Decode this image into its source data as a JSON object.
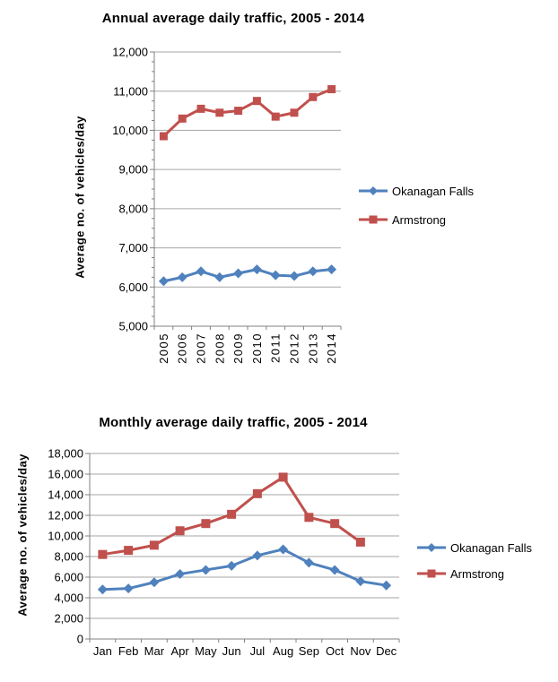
{
  "colors": {
    "okanagan_blue": "#4F81BD",
    "armstrong_red": "#C0504D",
    "gridline": "#A6A6A6",
    "axis_line": "#808080",
    "text": "#000000",
    "background": "#FFFFFF"
  },
  "chart_data": [
    {
      "type": "line",
      "title": "Annual average daily traffic, 2005 - 2014",
      "xlabel": "",
      "ylabel": "Average no. of vehicles/day",
      "categories": [
        "2005",
        "2006",
        "2007",
        "2008",
        "2009",
        "2010",
        "2011",
        "2012",
        "2013",
        "2014"
      ],
      "ylim": [
        5000,
        12000
      ],
      "ytick_step": 1000,
      "ytick_labels": [
        "5,000",
        "6,000",
        "7,000",
        "8,000",
        "9,000",
        "10,000",
        "11,000",
        "12,000"
      ],
      "grid": "horizontal",
      "legend_position": "right",
      "x_tick_label_rotation": -90,
      "series": [
        {
          "name": "Okanagan Falls",
          "color": "#4F81BD",
          "marker": "diamond",
          "values": [
            6150,
            6250,
            6400,
            6250,
            6350,
            6450,
            6300,
            6280,
            6400,
            6450
          ]
        },
        {
          "name": "Armstrong",
          "color": "#C0504D",
          "marker": "square",
          "values": [
            9850,
            10300,
            10550,
            10450,
            10500,
            10750,
            10350,
            10450,
            10850,
            11050
          ]
        }
      ]
    },
    {
      "type": "line",
      "title": "Monthly average daily traffic, 2005 - 2014",
      "xlabel": "",
      "ylabel": "Average no. of vehicles/day",
      "categories": [
        "Jan",
        "Feb",
        "Mar",
        "Apr",
        "May",
        "Jun",
        "Jul",
        "Aug",
        "Sep",
        "Oct",
        "Nov",
        "Dec"
      ],
      "ylim": [
        0,
        18000
      ],
      "ytick_step": 2000,
      "ytick_labels": [
        "0",
        "2,000",
        "4,000",
        "6,000",
        "8,000",
        "10,000",
        "12,000",
        "14,000",
        "16,000",
        "18,000"
      ],
      "grid": "horizontal",
      "legend_position": "right",
      "x_tick_label_rotation": 0,
      "series": [
        {
          "name": "Okanagan Falls",
          "color": "#4F81BD",
          "marker": "diamond",
          "values": [
            4800,
            4900,
            5500,
            6300,
            6700,
            7100,
            8100,
            8700,
            7400,
            6700,
            5600,
            5200
          ]
        },
        {
          "name": "Armstrong",
          "color": "#C0504D",
          "marker": "square",
          "values": [
            8200,
            8600,
            9100,
            10500,
            11200,
            12100,
            14100,
            15700,
            11800,
            11200,
            9400,
            null
          ]
        }
      ]
    }
  ]
}
